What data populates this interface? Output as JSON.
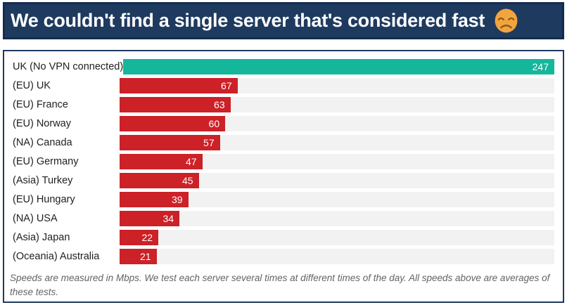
{
  "header": {
    "title": "We couldn't find a single server that's considered fast",
    "emoji": "disappointed-face-emoji",
    "bg_color": "#1e3a5f"
  },
  "chart_data": {
    "type": "bar",
    "orientation": "horizontal",
    "title": "We couldn't find a single server that's considered fast",
    "xlabel": "",
    "ylabel": "",
    "xlim": [
      0,
      247
    ],
    "grid": false,
    "unit": "Mbps",
    "categories": [
      "UK (No VPN connected)",
      "(EU) UK",
      "(EU) France",
      "(EU) Norway",
      "(NA) Canada",
      "(EU) Germany",
      "(Asia) Turkey",
      "(EU) Hungary",
      "(NA) USA",
      "(Asia) Japan",
      "(Oceania) Australia"
    ],
    "values": [
      247,
      67,
      63,
      60,
      57,
      47,
      45,
      39,
      34,
      22,
      21
    ],
    "rows": [
      {
        "label": "UK (No VPN connected)",
        "value": 247,
        "color": "#15b79b"
      },
      {
        "label": "(EU) UK",
        "value": 67,
        "color": "#cc2127"
      },
      {
        "label": "(EU) France",
        "value": 63,
        "color": "#cc2127"
      },
      {
        "label": "(EU) Norway",
        "value": 60,
        "color": "#cc2127"
      },
      {
        "label": "(NA) Canada",
        "value": 57,
        "color": "#cc2127"
      },
      {
        "label": "(EU) Germany",
        "value": 47,
        "color": "#cc2127"
      },
      {
        "label": "(Asia) Turkey",
        "value": 45,
        "color": "#cc2127"
      },
      {
        "label": "(EU) Hungary",
        "value": 39,
        "color": "#cc2127"
      },
      {
        "label": "(NA) USA",
        "value": 34,
        "color": "#cc2127"
      },
      {
        "label": "(Asia) Japan",
        "value": 22,
        "color": "#cc2127"
      },
      {
        "label": "(Oceania) Australia",
        "value": 21,
        "color": "#cc2127"
      }
    ],
    "colors": {
      "baseline_bar": "#15b79b",
      "server_bar": "#cc2127",
      "track": "#f2f2f2",
      "value_text": "#ffffff"
    }
  },
  "footer": {
    "note": "Speeds are measured in Mbps. We test each server several times at different times of the day. All speeds above are averages of these tests."
  }
}
